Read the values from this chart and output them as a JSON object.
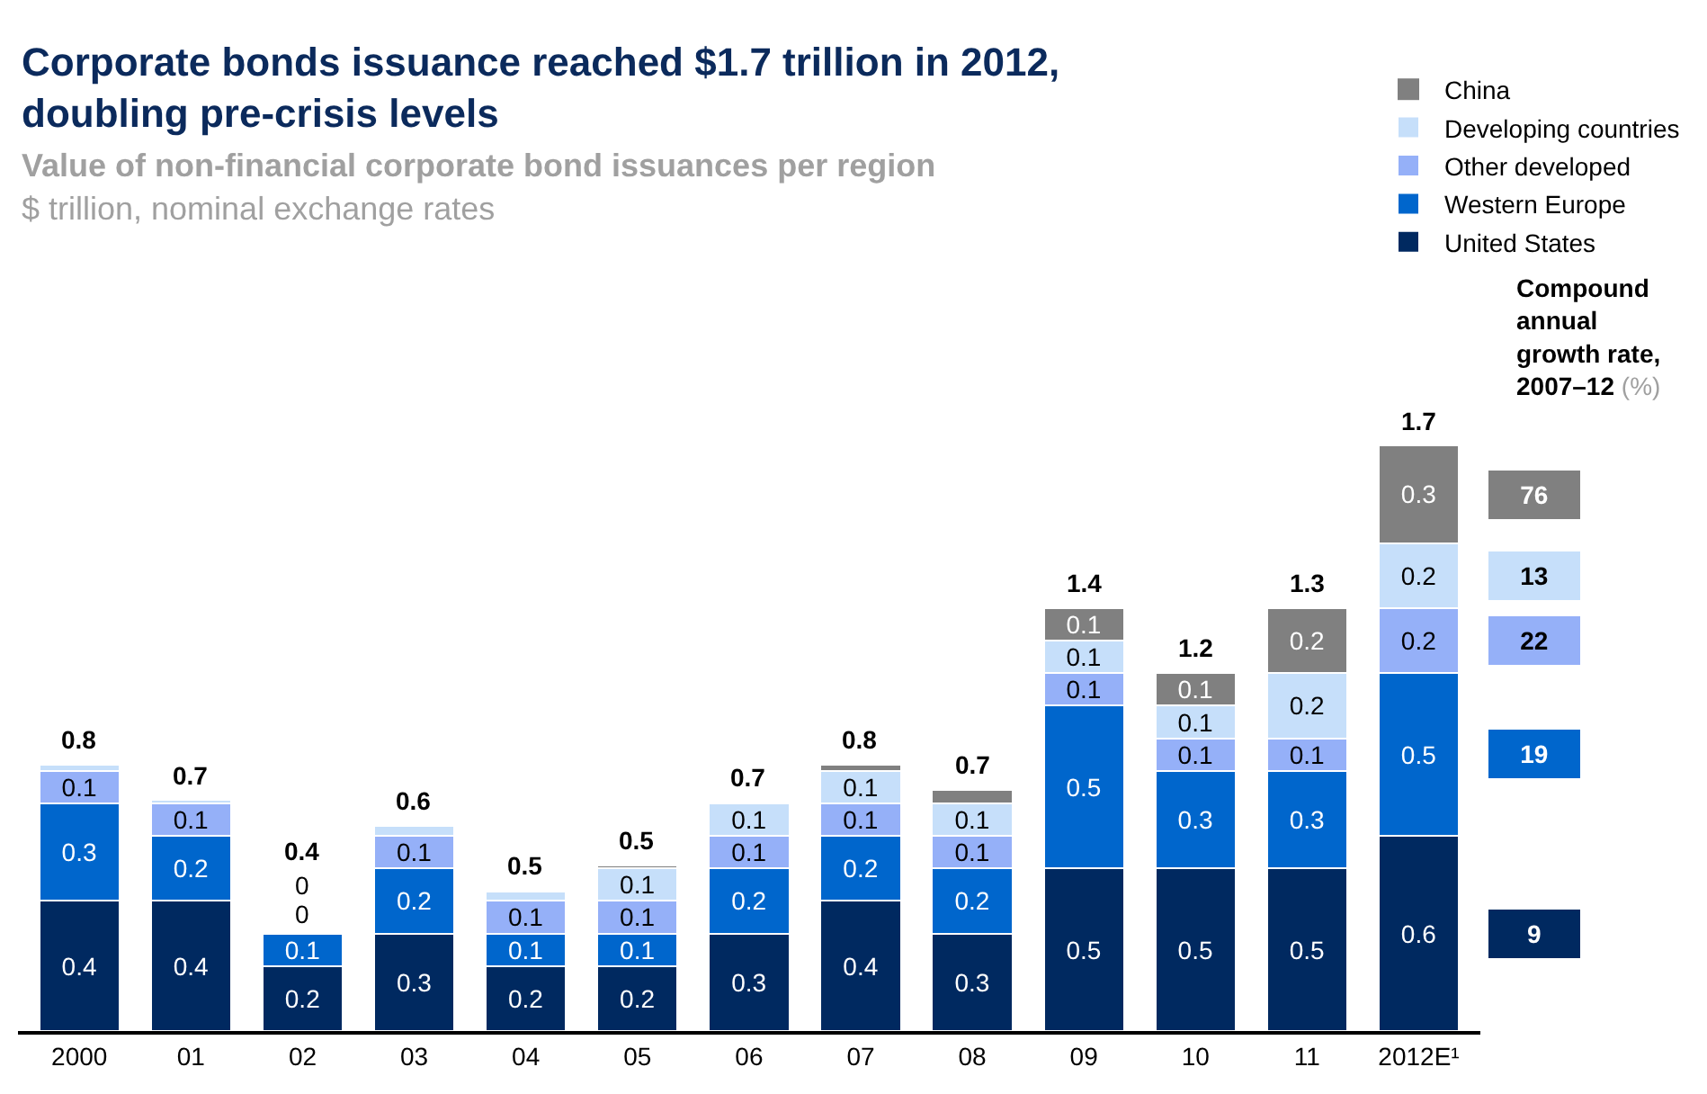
{
  "chart_data": {
    "type": "bar",
    "stacked": true,
    "title": "Corporate bonds issuance reached $1.7 trillion in 2012,\ndoubling pre-crisis levels",
    "subtitle": "Value of non-financial corporate bond issuances per region",
    "categories": [
      "2000",
      "01",
      "02",
      "03",
      "04",
      "05",
      "06",
      "07",
      "08",
      "09",
      "10",
      "11",
      "2012E¹"
    ],
    "series": [
      {
        "name": "United States",
        "color": "#002960",
        "values": [
          0.4,
          0.4,
          0.2,
          0.3,
          0.2,
          0.2,
          0.3,
          0.4,
          0.3,
          0.5,
          0.5,
          0.5,
          0.6
        ],
        "value_labels": [
          "0.4",
          "0.4",
          "0.2",
          "0.3",
          "0.2",
          "0.2",
          "0.3",
          "0.4",
          "0.3",
          "0.5",
          "0.5",
          "0.5",
          "0.6"
        ]
      },
      {
        "name": "Western Europe",
        "color": "#0066cc",
        "values": [
          0.3,
          0.2,
          0.1,
          0.2,
          0.1,
          0.1,
          0.2,
          0.2,
          0.2,
          0.5,
          0.3,
          0.3,
          0.5
        ],
        "value_labels": [
          "0.3",
          "0.2",
          "0.1",
          "0.2",
          "0.1",
          "0.1",
          "0.2",
          "0.2",
          "0.2",
          "0.5",
          "0.3",
          "0.3",
          "0.5"
        ]
      },
      {
        "name": "Other developed",
        "color": "#95b0f8",
        "values": [
          0.1,
          0.1,
          0,
          0.1,
          0.1,
          0.1,
          0.1,
          0.1,
          0.1,
          0.1,
          0.1,
          0.1,
          0.2
        ],
        "value_labels": [
          "0.1",
          "0.1",
          "0",
          "0.1",
          "0.1",
          "0.1",
          "0.1",
          "0.1",
          "0.1",
          "0.1",
          "0.1",
          "0.1",
          "0.2"
        ]
      },
      {
        "name": "Developing countries",
        "color": "#c6dffa",
        "values": [
          0.02,
          0.01,
          0,
          0.03,
          0.03,
          0.1,
          0.1,
          0.1,
          0.1,
          0.1,
          0.1,
          0.2,
          0.2
        ],
        "value_labels": [
          null,
          null,
          "0",
          null,
          null,
          "0.1",
          "0.1",
          "0.1",
          "0.1",
          "0.1",
          "0.1",
          "0.2",
          "0.2"
        ]
      },
      {
        "name": "China",
        "color": "#808080",
        "values": [
          null,
          null,
          null,
          null,
          null,
          0.01,
          null,
          0.02,
          0.04,
          0.1,
          0.1,
          0.2,
          0.3
        ],
        "value_labels": [
          null,
          null,
          null,
          null,
          null,
          null,
          null,
          null,
          null,
          "0.1",
          "0.1",
          "0.2",
          "0.3"
        ]
      }
    ],
    "totals": [
      "0.8",
      "0.7",
      "0.4",
      "0.6",
      "0.5",
      "0.5",
      "0.7",
      "0.8",
      "0.7",
      "1.4",
      "1.2",
      "1.3",
      "1.7"
    ],
    "legend": "top right",
    "annotations": [
      "$ trillion, nominal exchange rates",
      "Compound annual growth rate, 2007–12 (%)",
      "9",
      "19",
      "22",
      "13",
      "76"
    ]
  }
}
